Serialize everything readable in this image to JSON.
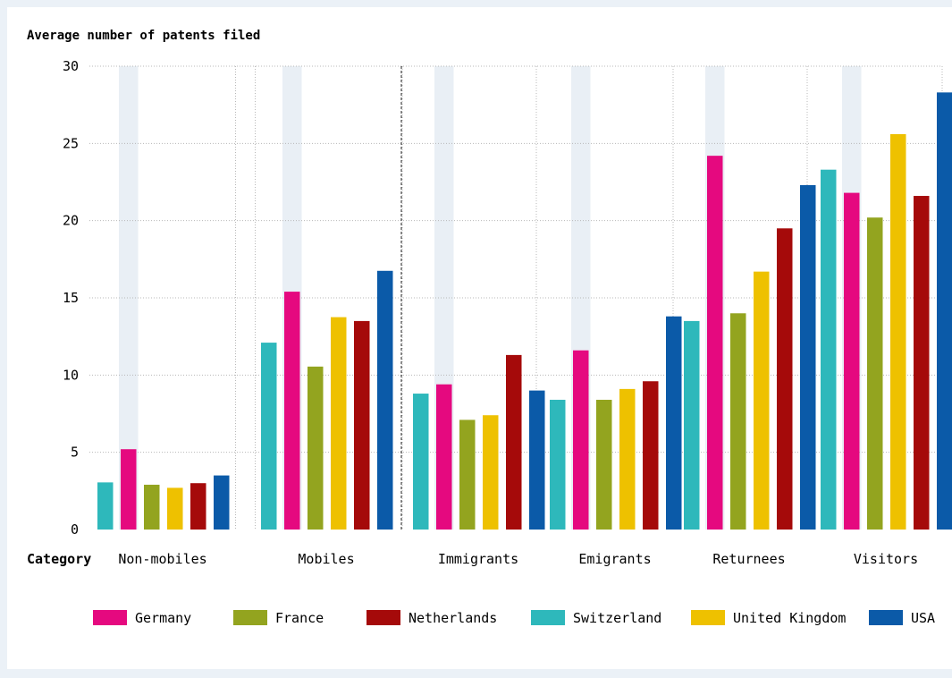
{
  "chart_data": {
    "type": "bar",
    "ylabel": "Average number of patents filed",
    "xlabel": "Category",
    "ylim": [
      0,
      30
    ],
    "yticks": [
      0,
      5,
      10,
      15,
      20,
      25,
      30
    ],
    "grid": true,
    "legend_position": "bottom",
    "categories": [
      "Non-mobiles",
      "Mobiles",
      "Immigrants",
      "Emigrants",
      "Returnees",
      "Visitors"
    ],
    "series": [
      {
        "name": "Switzerland",
        "color": "#2eb8bb",
        "values": [
          3.05,
          12.1,
          8.8,
          8.4,
          13.5,
          23.3
        ]
      },
      {
        "name": "Germany",
        "color": "#e5097f",
        "values": [
          5.2,
          15.4,
          9.4,
          11.6,
          24.2,
          21.8
        ]
      },
      {
        "name": "France",
        "color": "#93a41f",
        "values": [
          2.9,
          10.55,
          7.1,
          8.4,
          14.0,
          20.2
        ]
      },
      {
        "name": "United Kingdom",
        "color": "#eec100",
        "values": [
          2.7,
          13.75,
          7.4,
          9.1,
          16.7,
          25.6
        ]
      },
      {
        "name": "Netherlands",
        "color": "#a50a0a",
        "values": [
          3.0,
          13.5,
          11.3,
          9.6,
          19.5,
          21.6
        ]
      },
      {
        "name": "USA",
        "color": "#0b5aa8",
        "values": [
          3.5,
          16.75,
          9.0,
          13.8,
          22.3,
          28.3
        ]
      }
    ],
    "legend_order": [
      "Germany",
      "France",
      "Netherlands",
      "Switzerland",
      "United Kingdom",
      "USA"
    ],
    "highlight_series": "Germany",
    "highlight_color": "#e9eff5"
  }
}
